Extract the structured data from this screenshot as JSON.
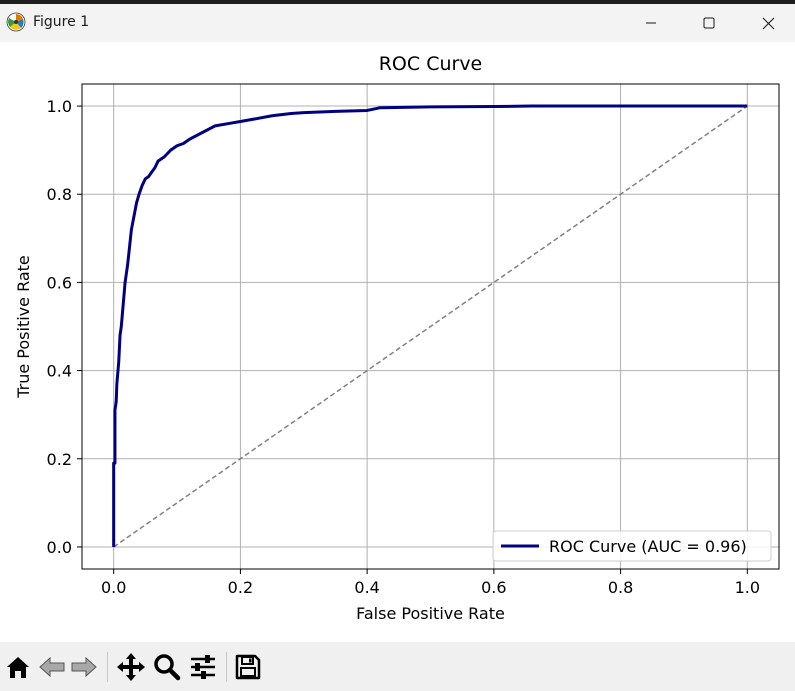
{
  "window": {
    "title": "Figure 1",
    "icons": {
      "app": "matplotlib-logo-icon",
      "minimize": "minimize-icon",
      "maximize": "maximize-icon",
      "close": "close-icon"
    }
  },
  "chart_data": {
    "type": "line",
    "title": "ROC Curve",
    "xlabel": "False Positive Rate",
    "ylabel": "True Positive Rate",
    "xlim": [
      -0.05,
      1.05
    ],
    "ylim": [
      -0.05,
      1.05
    ],
    "xticks": [
      0.0,
      0.2,
      0.4,
      0.6,
      0.8,
      1.0
    ],
    "yticks": [
      0.0,
      0.2,
      0.4,
      0.6,
      0.8,
      1.0
    ],
    "xtick_labels": [
      "0.0",
      "0.2",
      "0.4",
      "0.6",
      "0.8",
      "1.0"
    ],
    "ytick_labels": [
      "0.0",
      "0.2",
      "0.4",
      "0.6",
      "0.8",
      "1.0"
    ],
    "grid": true,
    "legend_position": "lower-right",
    "series": [
      {
        "name": "ROC Curve (AUC = 0.96)",
        "color": "#000080",
        "style": "solid",
        "x": [
          0.0,
          0.0,
          0.002,
          0.002,
          0.004,
          0.005,
          0.008,
          0.01,
          0.012,
          0.015,
          0.018,
          0.022,
          0.025,
          0.028,
          0.032,
          0.036,
          0.04,
          0.045,
          0.05,
          0.055,
          0.06,
          0.065,
          0.07,
          0.08,
          0.09,
          0.1,
          0.11,
          0.12,
          0.14,
          0.16,
          0.18,
          0.2,
          0.22,
          0.25,
          0.28,
          0.3,
          0.35,
          0.4,
          0.42,
          0.5,
          0.6,
          0.66,
          0.8,
          0.9,
          1.0
        ],
        "y": [
          0.0,
          0.19,
          0.19,
          0.31,
          0.33,
          0.37,
          0.42,
          0.48,
          0.5,
          0.55,
          0.6,
          0.64,
          0.68,
          0.72,
          0.75,
          0.78,
          0.8,
          0.82,
          0.835,
          0.84,
          0.85,
          0.86,
          0.875,
          0.885,
          0.9,
          0.91,
          0.915,
          0.925,
          0.94,
          0.955,
          0.96,
          0.965,
          0.97,
          0.978,
          0.983,
          0.985,
          0.988,
          0.99,
          0.996,
          0.998,
          0.999,
          1.0,
          1.0,
          1.0,
          1.0
        ]
      },
      {
        "name": "",
        "color": "#808080",
        "style": "dashed",
        "x": [
          0.0,
          1.0
        ],
        "y": [
          0.0,
          1.0
        ]
      }
    ]
  },
  "toolbar": {
    "icons": [
      "home-icon",
      "back-arrow-icon",
      "forward-arrow-icon",
      "pan-icon",
      "zoom-icon",
      "configure-subplots-icon",
      "save-icon"
    ]
  }
}
